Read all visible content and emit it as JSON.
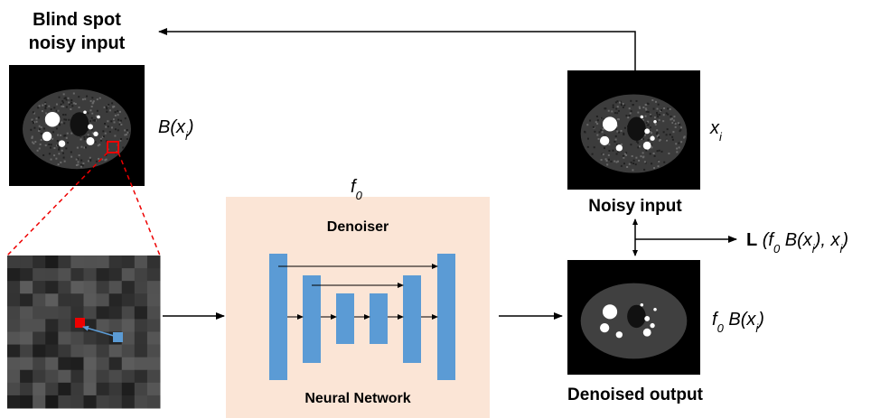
{
  "title_lines": [
    "Blind spot",
    "noisy input"
  ],
  "blind_label": [
    {
      "t": "B(x"
    },
    {
      "t": "i",
      "sub": true
    },
    {
      "t": ")"
    }
  ],
  "network": {
    "function": [
      {
        "t": "f"
      },
      {
        "t": "0",
        "sub": true
      }
    ],
    "top_label": "Denoiser",
    "bottom_label": "Neural Network"
  },
  "noisy": {
    "caption": "Noisy input",
    "label": [
      {
        "t": "x"
      },
      {
        "t": "i",
        "sub": true
      }
    ]
  },
  "denoised": {
    "caption": "Denoised output",
    "label": [
      {
        "t": "f"
      },
      {
        "t": "0",
        "sub": true
      },
      {
        "t": " B(x"
      },
      {
        "t": "i",
        "sub": true
      },
      {
        "t": ")"
      }
    ]
  },
  "loss": [
    {
      "t": "L",
      "bold": true
    },
    {
      "t": " (f"
    },
    {
      "t": "0",
      "sub": true
    },
    {
      "t": " B(x"
    },
    {
      "t": "i",
      "sub": true
    },
    {
      "t": "), x"
    },
    {
      "t": "i",
      "sub": true
    },
    {
      "t": ")"
    }
  ]
}
